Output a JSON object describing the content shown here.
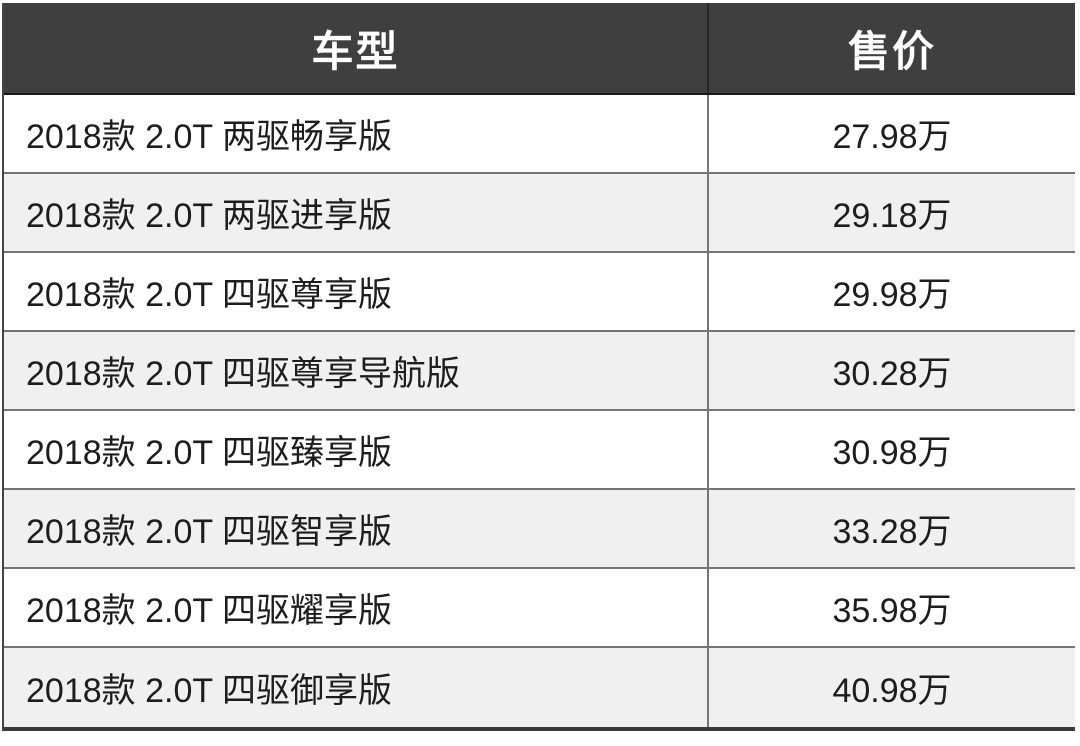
{
  "table": {
    "headers": [
      {
        "label": "车型"
      },
      {
        "label": "售价"
      }
    ],
    "rows": [
      {
        "model": "2018款 2.0T 两驱畅享版",
        "price": "27.98万"
      },
      {
        "model": "2018款 2.0T 两驱进享版",
        "price": "29.18万"
      },
      {
        "model": "2018款 2.0T 四驱尊享版",
        "price": "29.98万"
      },
      {
        "model": "2018款 2.0T 四驱尊享导航版",
        "price": "30.28万"
      },
      {
        "model": "2018款 2.0T 四驱臻享版",
        "price": "30.98万"
      },
      {
        "model": "2018款 2.0T 四驱智享版",
        "price": "33.28万"
      },
      {
        "model": "2018款 2.0T 四驱耀享版",
        "price": "35.98万"
      },
      {
        "model": "2018款 2.0T 四驱御享版",
        "price": "40.98万"
      }
    ],
    "colors": {
      "header_bg": "#3f3f3f",
      "header_text": "#ffffff",
      "row_bg": "#ffffff",
      "row_alt_bg": "#f0f0f0",
      "row_border": "#757575",
      "outer_border": "#3a3a3a"
    }
  },
  "chart_data": {
    "type": "table",
    "title": "",
    "columns": [
      "车型",
      "售价"
    ],
    "rows": [
      [
        "2018款 2.0T 两驱畅享版",
        "27.98万"
      ],
      [
        "2018款 2.0T 两驱进享版",
        "29.18万"
      ],
      [
        "2018款 2.0T 四驱尊享版",
        "29.98万"
      ],
      [
        "2018款 2.0T 四驱尊享导航版",
        "30.28万"
      ],
      [
        "2018款 2.0T 四驱臻享版",
        "30.98万"
      ],
      [
        "2018款 2.0T 四驱智享版",
        "33.28万"
      ],
      [
        "2018款 2.0T 四驱耀享版",
        "35.98万"
      ],
      [
        "2018款 2.0T 四驱御享版",
        "40.98万"
      ]
    ],
    "prices_wan": [
      27.98,
      29.18,
      29.98,
      30.28,
      30.98,
      33.28,
      35.98,
      40.98
    ],
    "layout": {
      "zebra_striping": true,
      "header_dark": true
    }
  }
}
